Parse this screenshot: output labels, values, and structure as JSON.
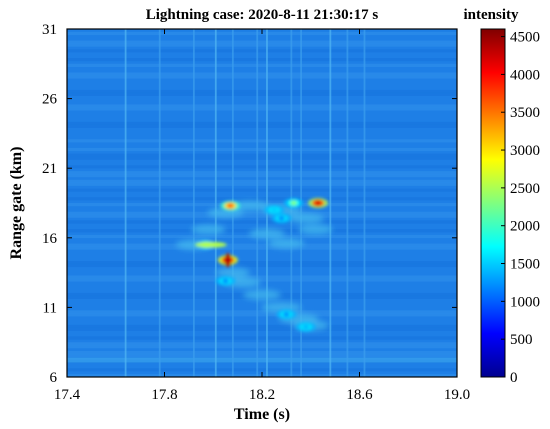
{
  "chart_data": {
    "type": "heatmap",
    "title": "Lightning case: 2020-8-11 21:30:17 s",
    "xlabel": "Time (s)",
    "ylabel": "Range gate (km)",
    "xlim": [
      17.4,
      19.0
    ],
    "ylim": [
      6,
      31
    ],
    "x_ticks": [
      "17.4",
      "17.8",
      "18.2",
      "18.6",
      "19.0"
    ],
    "x_tick_values": [
      17.4,
      17.8,
      18.2,
      18.6,
      19.0
    ],
    "y_ticks": [
      "6",
      "11",
      "16",
      "21",
      "26",
      "31"
    ],
    "y_tick_values": [
      6,
      11,
      16,
      21,
      26,
      31
    ],
    "colorbar": {
      "label": "intensity",
      "range": [
        0,
        4600
      ],
      "ticks": [
        "0",
        "500",
        "1000",
        "1500",
        "2000",
        "2500",
        "3000",
        "3500",
        "4000",
        "4500"
      ],
      "tick_values": [
        0,
        500,
        1000,
        1500,
        2000,
        2500,
        3000,
        3500,
        4000,
        4500
      ],
      "colormap": "jet"
    },
    "background_intensity": 500,
    "features": [
      {
        "time": 18.07,
        "range_km": 18.3,
        "intensity": 3600
      },
      {
        "time": 18.43,
        "range_km": 18.5,
        "intensity": 4200
      },
      {
        "time": 17.97,
        "range_km": 15.5,
        "intensity": 2600
      },
      {
        "time": 18.06,
        "range_km": 14.4,
        "intensity": 4500
      },
      {
        "time": 18.33,
        "range_km": 18.5,
        "intensity": 2300
      },
      {
        "time": 18.25,
        "range_km": 18.0,
        "intensity": 1500
      },
      {
        "time": 18.28,
        "range_km": 17.4,
        "intensity": 1200
      },
      {
        "time": 18.05,
        "range_km": 12.9,
        "intensity": 1200
      },
      {
        "time": 18.3,
        "range_km": 10.5,
        "intensity": 1200
      },
      {
        "time": 18.38,
        "range_km": 9.6,
        "intensity": 1400
      }
    ],
    "vertical_streak_times": [
      17.64,
      17.78,
      17.92,
      18.01,
      18.08,
      18.18,
      18.22,
      18.32,
      18.36,
      18.48,
      18.55,
      18.62
    ],
    "colors": {
      "background": "#1e7fe6",
      "frame": "#000000"
    }
  }
}
